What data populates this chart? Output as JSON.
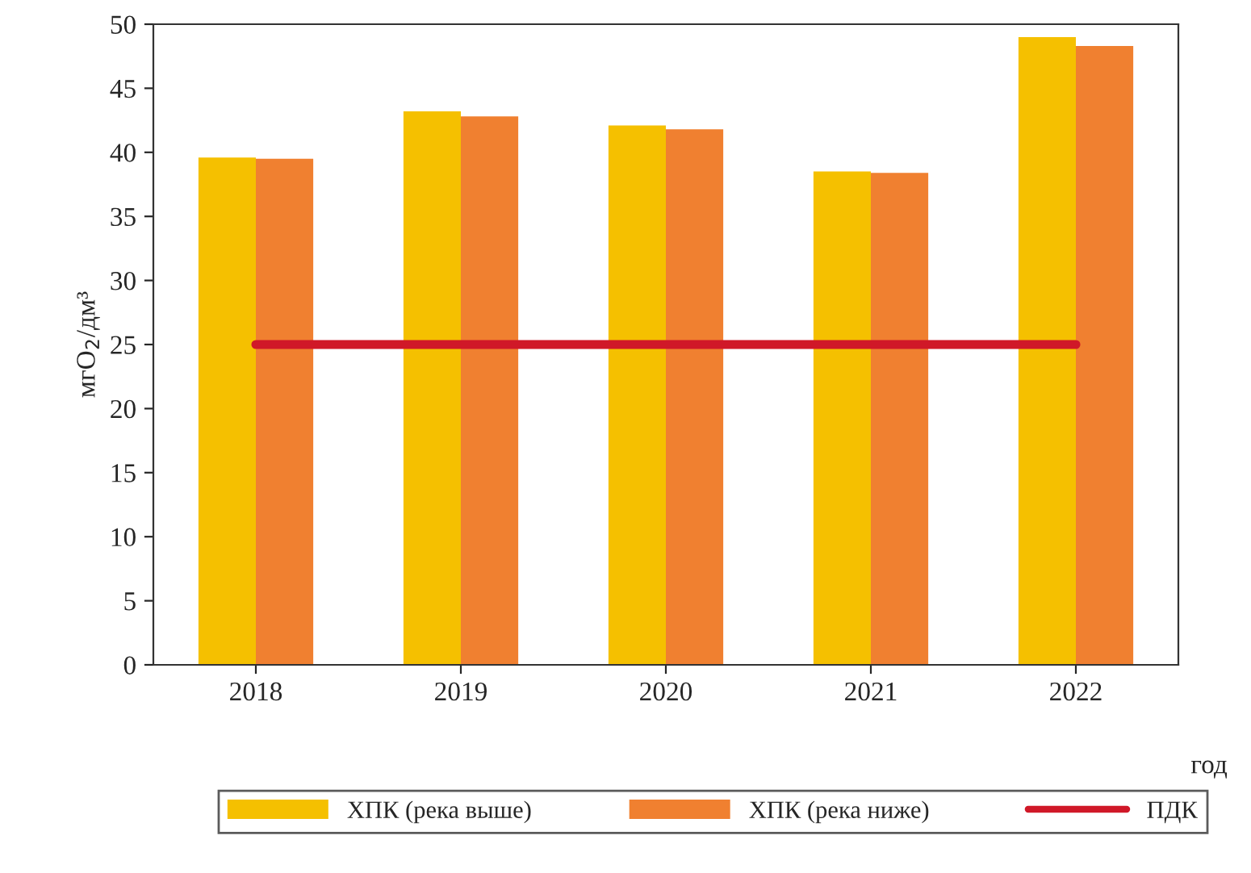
{
  "chart_data": {
    "type": "bar",
    "xlabel": "год",
    "ylabel": "мгО$_{2}$/дм³",
    "categories": [
      "2018",
      "2019",
      "2020",
      "2021",
      "2022"
    ],
    "series": [
      {
        "name": "ХПК (река выше)",
        "color": "#f5c000",
        "values": [
          39.6,
          43.2,
          42.1,
          38.5,
          49.0
        ]
      },
      {
        "name": "ХПК (река ниже)",
        "color": "#f08030",
        "values": [
          39.5,
          42.8,
          41.8,
          38.4,
          48.3
        ]
      },
      {
        "name": "ПДК",
        "type": "line",
        "color": "#d01828",
        "values": [
          25,
          25,
          25,
          25,
          25
        ]
      }
    ],
    "ylim": [
      0,
      50
    ],
    "yticks": [
      0,
      5,
      10,
      15,
      20,
      25,
      30,
      35,
      40,
      45,
      50
    ],
    "legend": "bottom",
    "grid": false
  }
}
